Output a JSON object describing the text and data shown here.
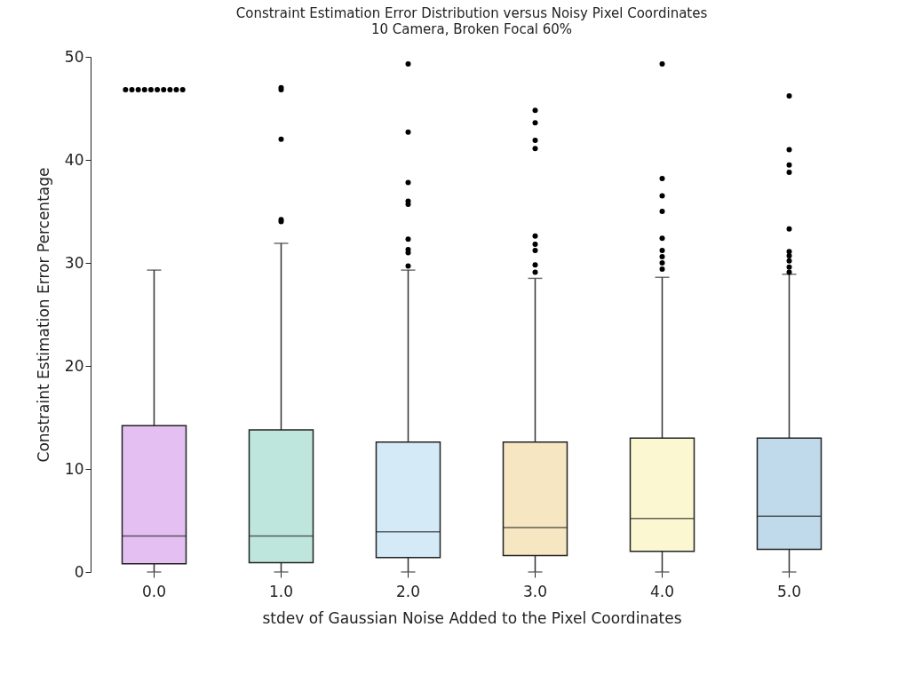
{
  "chart_data": {
    "type": "box",
    "title": "Constraint Estimation Error Distribution  versus Noisy Pixel Coordinates",
    "subtitle": "10 Camera, Broken Focal 60%",
    "xlabel": "stdev of Gaussian Noise Added to the Pixel Coordinates",
    "ylabel": "Constraint Estimation Error Percentage",
    "categories": [
      "0.0",
      "1.0",
      "2.0",
      "3.0",
      "4.0",
      "5.0"
    ],
    "colors": [
      "#e4bff2",
      "#bfe6dd",
      "#d4eaf7",
      "#f7e6c2",
      "#faf7d1",
      "#c0daec"
    ],
    "boxes": [
      {
        "low": 0,
        "q1": 0.8,
        "median": 3.5,
        "q3": 14.2,
        "high": 29.3,
        "outliers": [
          46.8,
          46.8,
          46.8,
          46.8,
          46.8,
          46.8,
          46.8,
          46.8,
          46.8,
          46.8
        ]
      },
      {
        "low": 0,
        "q1": 0.9,
        "median": 3.5,
        "q3": 13.8,
        "high": 31.9,
        "outliers": [
          47.0,
          46.8,
          42.0,
          34.2,
          34.0
        ]
      },
      {
        "low": 0,
        "q1": 1.4,
        "median": 3.9,
        "q3": 12.6,
        "high": 29.3,
        "outliers": [
          49.3,
          42.7,
          37.8,
          36.0,
          35.7,
          32.3,
          31.3,
          31.0,
          29.7
        ]
      },
      {
        "low": 0,
        "q1": 1.6,
        "median": 4.3,
        "q3": 12.6,
        "high": 28.5,
        "outliers": [
          44.8,
          43.6,
          41.9,
          41.1,
          32.6,
          31.8,
          31.2,
          29.8,
          29.1
        ]
      },
      {
        "low": 0,
        "q1": 2.0,
        "median": 5.2,
        "q3": 13.0,
        "high": 28.6,
        "outliers": [
          49.3,
          38.2,
          36.5,
          35.0,
          32.4,
          31.2,
          30.6,
          30.0,
          29.4
        ]
      },
      {
        "low": 0,
        "q1": 2.2,
        "median": 5.4,
        "q3": 13.0,
        "high": 28.9,
        "outliers": [
          46.2,
          41.0,
          39.5,
          38.8,
          33.3,
          31.1,
          30.7,
          30.2,
          29.6,
          29.1
        ]
      }
    ],
    "ylim": [
      0,
      50
    ],
    "yticks": [
      0,
      10,
      20,
      30,
      40,
      50
    ],
    "grid": false,
    "legend": false
  }
}
